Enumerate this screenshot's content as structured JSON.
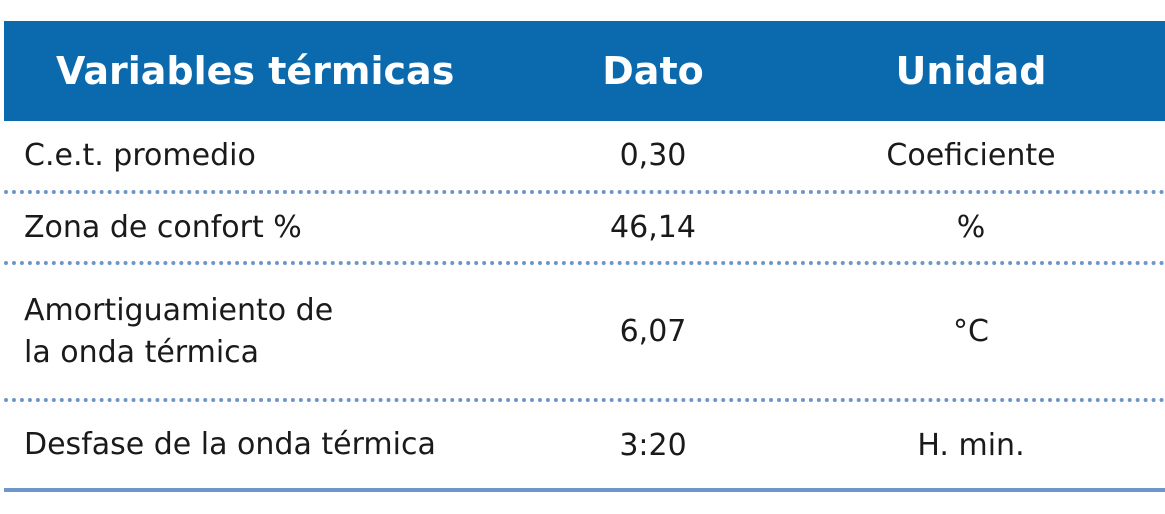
{
  "table": {
    "headers": [
      "Variables térmicas",
      "Dato",
      "Unidad"
    ],
    "rows": [
      {
        "variable": "C.e.t. promedio",
        "dato": "0,30",
        "unidad": "Coeficiente"
      },
      {
        "variable": "Zona de confort %",
        "dato": "46,14",
        "unidad": "%"
      },
      {
        "variable_line1": "Amortiguamiento de",
        "variable_line2": "la onda térmica",
        "dato": "6,07",
        "unidad": "°C"
      },
      {
        "variable": "Desfase de la onda térmica",
        "dato": "3:20",
        "unidad": "H. min."
      }
    ]
  },
  "colors": {
    "header_bg": "#0a6aad",
    "header_text": "#ffffff",
    "separator": "#6f96c8"
  }
}
